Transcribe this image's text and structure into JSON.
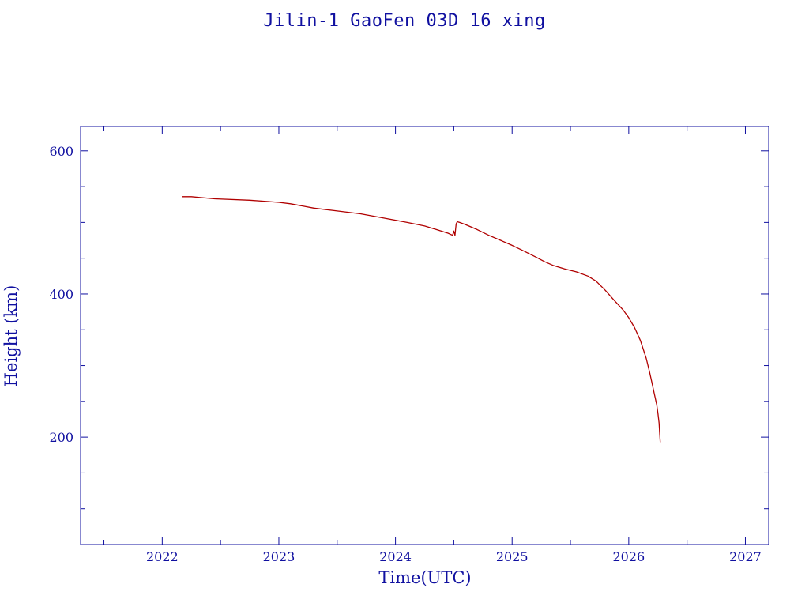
{
  "chart_data": {
    "type": "line",
    "title": "Jilin-1 GaoFen 03D 16 xing",
    "xlabel": "Time(UTC)",
    "ylabel": "Height (km)",
    "xlim": [
      2021.3,
      2027.2
    ],
    "ylim": [
      50,
      634
    ],
    "x_ticks": [
      2022,
      2023,
      2024,
      2025,
      2026,
      2027
    ],
    "x_tick_labels": [
      "2022",
      "2023",
      "2024",
      "2025",
      "2026",
      "2027"
    ],
    "y_ticks": [
      200,
      400,
      600
    ],
    "y_tick_labels": [
      "200",
      "400",
      "600"
    ],
    "grid": false,
    "colors": {
      "axis": "#1010a0",
      "line": "#b00000"
    },
    "series": [
      {
        "x": [
          2022.17,
          2022.25,
          2022.45,
          2022.75,
          2023.0,
          2023.1,
          2023.3,
          2023.5,
          2023.7,
          2023.9,
          2024.1,
          2024.25,
          2024.35,
          2024.45,
          2024.49,
          2024.5,
          2024.51,
          2024.52,
          2024.53,
          2024.55,
          2024.6,
          2024.7,
          2024.8,
          2024.9,
          2025.0,
          2025.1,
          2025.2,
          2025.28,
          2025.35,
          2025.45,
          2025.55,
          2025.65,
          2025.72,
          2025.8,
          2025.87,
          2025.95,
          2026.0,
          2026.05,
          2026.1,
          2026.15,
          2026.18,
          2026.2,
          2026.22,
          2026.24,
          2026.25,
          2026.26,
          2026.265,
          2026.27
        ],
        "y": [
          536,
          536,
          533,
          531,
          528,
          526,
          520,
          516,
          512,
          506,
          500,
          495,
          490,
          485,
          482,
          488,
          482,
          498,
          501,
          500,
          497,
          490,
          482,
          475,
          468,
          460,
          452,
          445,
          440,
          435,
          431,
          425,
          418,
          405,
          392,
          378,
          367,
          353,
          335,
          310,
          290,
          275,
          260,
          245,
          233,
          220,
          205,
          193
        ]
      }
    ]
  }
}
